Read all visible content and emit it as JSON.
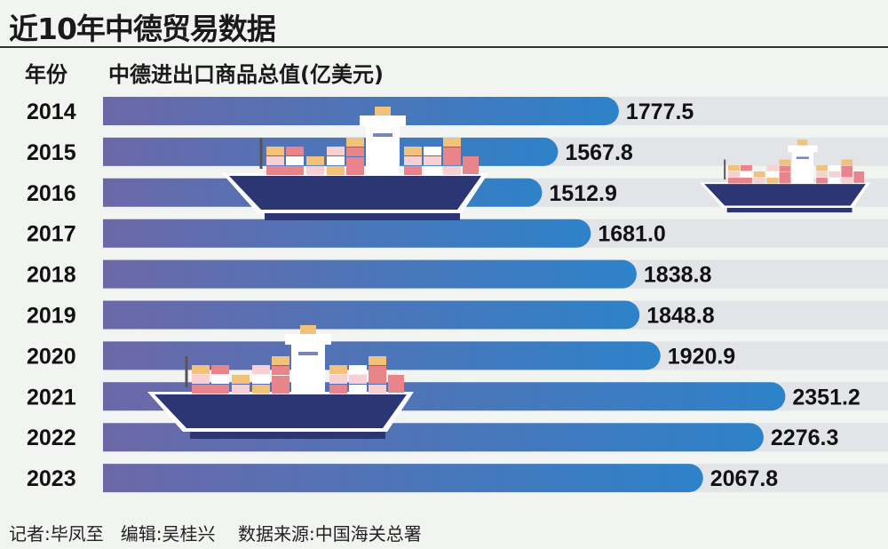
{
  "title": "近10年中德贸易数据",
  "header": {
    "year_label": "年份",
    "value_label": "中德进出口商品总值(亿美元)"
  },
  "footer": "记者:毕凤至   编辑:吴桂兴    数据来源:中国海关总署",
  "colors": {
    "bar_start": "#6c68a8",
    "bar_end": "#2d82c9",
    "track": "#e2e4e8",
    "ship_hull": "#2b3673"
  },
  "chart_data": {
    "type": "bar",
    "orientation": "horizontal",
    "title": "近10年中德贸易数据",
    "xlabel": "中德进出口商品总值(亿美元)",
    "ylabel": "年份",
    "categories": [
      "2014",
      "2015",
      "2016",
      "2017",
      "2018",
      "2019",
      "2020",
      "2021",
      "2022",
      "2023"
    ],
    "values": [
      1777.5,
      1567.8,
      1512.9,
      1681.0,
      1838.8,
      1848.8,
      1920.9,
      2351.2,
      2276.3,
      2067.8
    ],
    "value_labels": [
      "1777.5",
      "1567.8",
      "1512.9",
      "1681.0",
      "1838.8",
      "1848.8",
      "1920.9",
      "2351.2",
      "2276.3",
      "2067.8"
    ],
    "xlim": [
      0,
      2700
    ],
    "grid": false
  }
}
